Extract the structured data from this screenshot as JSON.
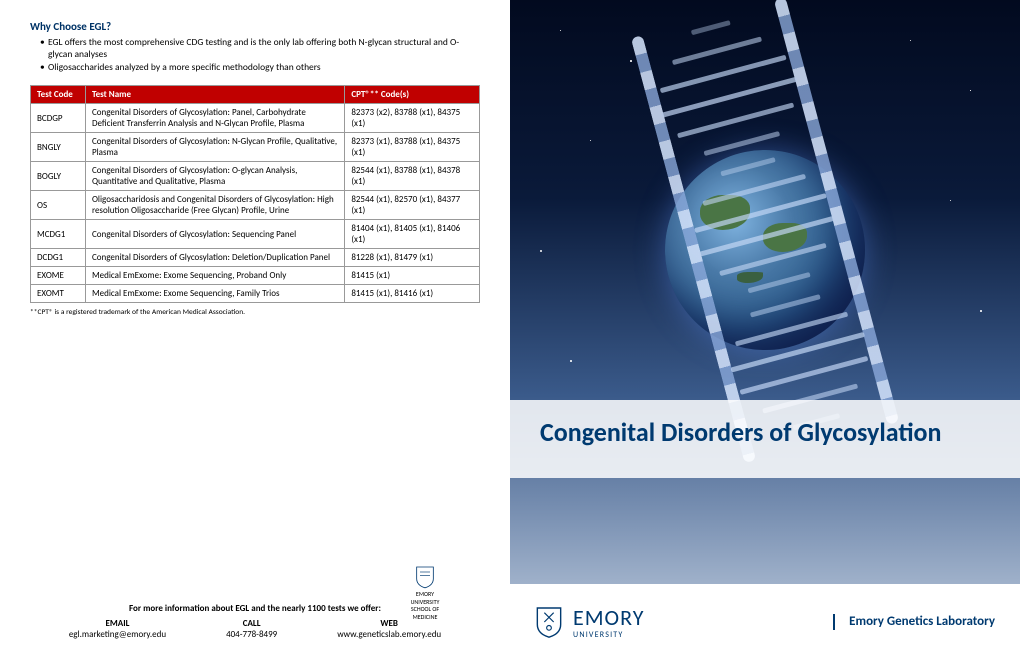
{
  "left": {
    "why_title": "Why Choose EGL?",
    "bullets": [
      "EGL offers the most comprehensive CDG testing and is the only lab offering both N-glycan structural and O-glycan analyses",
      "Oligosaccharides analyzed by a more specific methodology than others"
    ],
    "table": {
      "columns": [
        "Test Code",
        "Test Name",
        "CPT®** Code(s)"
      ],
      "rows": [
        [
          "BCDGP",
          "Congenital Disorders of Glycosylation: Panel, Carbohydrate Deficient Transferrin Analysis and N-Glycan Profile, Plasma",
          "82373 (x2), 83788 (x1), 84375 (x1)"
        ],
        [
          "BNGLY",
          "Congenital Disorders of Glycosylation: N-Glycan Profile, Qualitative, Plasma",
          "82373 (x1), 83788 (x1), 84375 (x1)"
        ],
        [
          "BOGLY",
          "Congenital Disorders of Glycosylation: O-glycan Analysis, Quantitative and Qualitative, Plasma",
          "82544 (x1), 83788 (x1), 84378 (x1)"
        ],
        [
          "OS",
          "Oligosaccharidosis and Congenital Disorders of Glycosylation: High resolution Oligosaccharide (Free Glycan) Profile, Urine",
          "82544 (x1), 82570 (x1), 84377 (x1)"
        ],
        [
          "MCDG1",
          "Congenital Disorders of Glycosylation: Sequencing Panel",
          "81404 (x1), 81405 (x1), 81406 (x1)"
        ],
        [
          "DCDG1",
          "Congenital Disorders of Glycosylation: Deletion/Duplication Panel",
          "81228 (x1), 81479 (x1)"
        ],
        [
          "EXOME",
          "Medical EmExome: Exome Sequencing, Proband Only",
          "81415 (x1)"
        ],
        [
          "EXOMT",
          "Medical EmExome: Exome Sequencing, Family Trios",
          "81415 (x1), 81416 (x1)"
        ]
      ]
    },
    "footnote": "**CPT® is a registered trademark of the American Medical Association.",
    "contact": {
      "title": "For more information about EGL and the nearly 1100 tests we offer:",
      "items": [
        {
          "label": "EMAIL",
          "value": "egl.marketing@emory.edu"
        },
        {
          "label": "CALL",
          "value": "404-778-8499"
        },
        {
          "label": "WEB",
          "value": "www.geneticslab.emory.edu"
        }
      ]
    },
    "small_logo": {
      "line1": "EMORY",
      "line2": "UNIVERSITY",
      "line3": "SCHOOL OF",
      "line4": "MEDICINE"
    }
  },
  "right": {
    "main_title": "Congenital Disorders of Glycosylation",
    "logo": {
      "emory": "EMORY",
      "university": "UNIVERSITY",
      "lab": "Emory Genetics Laboratory"
    }
  },
  "colors": {
    "header_red": "#c00000",
    "emory_blue": "#003a70",
    "text_blue": "#003366"
  }
}
